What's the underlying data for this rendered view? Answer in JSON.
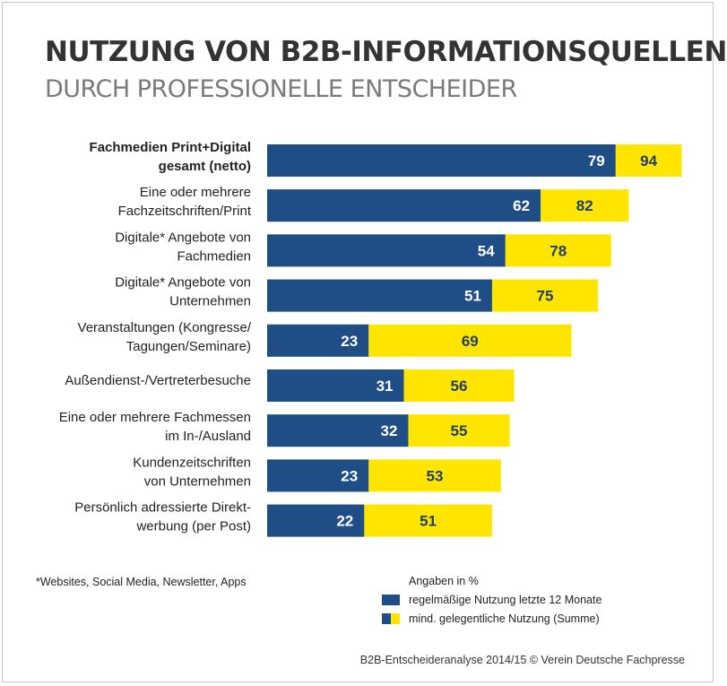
{
  "header": {
    "title": "NUTZUNG VON B2B-INFORMATIONSQUELLEN",
    "subtitle": "DURCH PROFESSIONELLE ENTSCHEIDER"
  },
  "colors": {
    "regular": "#1f4e86",
    "occasional": "#ffe500",
    "regular_label": "#ffffff",
    "occasional_label": "#1f3f6e"
  },
  "chart_data": {
    "type": "bar",
    "orientation": "horizontal",
    "categories": [
      [
        "Fachmedien Print+Digital",
        "gesamt (netto)"
      ],
      [
        "Eine oder mehrere",
        "Fachzeitschriften/Print"
      ],
      [
        "Digitale* Angebote von",
        "Fachmedien"
      ],
      [
        "Digitale* Angebote von",
        "Unternehmen"
      ],
      [
        "Veranstaltungen (Kongresse/",
        "Tagungen/Seminare)"
      ],
      [
        "Außendienst-/Vertreterbesuche"
      ],
      [
        "Eine oder mehrere Fachmessen",
        "im In-/Ausland"
      ],
      [
        "Kundenzeitschriften",
        "von Unternehmen"
      ],
      [
        "Persönlich adressierte Direkt-",
        "werbung (per Post)"
      ]
    ],
    "highlight_index": 0,
    "series": [
      {
        "name": "regelmäßige Nutzung letzte 12 Monate",
        "values": [
          79,
          62,
          54,
          51,
          23,
          31,
          32,
          23,
          22
        ]
      },
      {
        "name": "mind. gelegentliche Nutzung (Summe)",
        "values": [
          94,
          82,
          78,
          75,
          69,
          56,
          55,
          53,
          51
        ]
      }
    ],
    "xlim": [
      0,
      100
    ],
    "grid": false,
    "legend_position": "bottom-right"
  },
  "footer": {
    "footnote": "*Websites, Social Media, Newsletter, Apps",
    "unit_note": "Angaben in %",
    "legend_regular": "regelmäßige Nutzung letzte 12 Monate",
    "legend_occasional": "mind. gelegentliche Nutzung (Summe)",
    "source": "B2B-Entscheideranalyse 2014/15 © Verein Deutsche Fachpresse"
  }
}
